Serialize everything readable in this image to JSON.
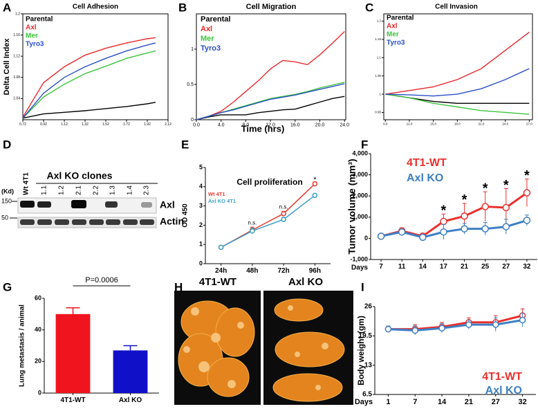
{
  "panel_labels": [
    "A",
    "B",
    "C",
    "D",
    "E",
    "F",
    "G",
    "H",
    "I"
  ],
  "shared_x_label": "Time (hrs)",
  "chart_data": [
    {
      "type": "line",
      "title": "Cell Adhesion",
      "y_label": "Delta Cell Index",
      "x": [
        0.72,
        0.92,
        1.12,
        1.32,
        1.52,
        1.72,
        1.92,
        2.0
      ],
      "xlim": [
        0.72,
        2.12
      ],
      "xticks": [
        0.72,
        0.92,
        1.12,
        1.32,
        1.52,
        1.72,
        1.92,
        2.12
      ],
      "ylim": [
        1.0,
        1.2
      ],
      "yticks": [
        1.04,
        1.08,
        1.12,
        1.16,
        1.2
      ],
      "legend": "top-left",
      "series": [
        {
          "name": "Parental",
          "color": "#000000",
          "values": [
            1.003,
            1.011,
            1.014,
            1.017,
            1.021,
            1.025,
            1.03,
            1.033
          ]
        },
        {
          "name": "Axl",
          "color": "#e8282b",
          "values": [
            1.005,
            1.07,
            1.1,
            1.122,
            1.135,
            1.145,
            1.153,
            1.155
          ]
        },
        {
          "name": "Mer",
          "color": "#3cc43c",
          "values": [
            1.003,
            1.043,
            1.067,
            1.087,
            1.101,
            1.116,
            1.126,
            1.13
          ]
        },
        {
          "name": "Tyro3",
          "color": "#2a4fc7",
          "values": [
            1.003,
            1.05,
            1.08,
            1.1,
            1.116,
            1.13,
            1.141,
            1.145
          ]
        }
      ]
    },
    {
      "type": "line",
      "title": "Cell Migration",
      "x": [
        0,
        2,
        4,
        6,
        8,
        10,
        12,
        14,
        16,
        18,
        20,
        22,
        24
      ],
      "xlim": [
        0,
        24.2
      ],
      "xticks": [
        {
          "value": 0,
          "label": "0.0"
        },
        {
          "value": 4,
          "label": "4.0"
        },
        {
          "value": 8,
          "label": "8.0"
        },
        {
          "value": 12,
          "label": "12.0"
        },
        {
          "value": 16,
          "label": "16.0"
        },
        {
          "value": 20,
          "label": "20.0"
        },
        {
          "value": 24,
          "label": "24.0"
        }
      ],
      "ylim": [
        0,
        1.5
      ],
      "yticks": [
        0,
        0.5,
        1
      ],
      "legend": "top-left",
      "series": [
        {
          "name": "Parental",
          "color": "#000000",
          "values": [
            0,
            0.04,
            0.07,
            0.07,
            0.07,
            0.1,
            0.12,
            0.14,
            0.15,
            0.2,
            0.25,
            0.3,
            0.33
          ]
        },
        {
          "name": "Axl",
          "color": "#e8282b",
          "values": [
            0,
            0.05,
            0.12,
            0.25,
            0.4,
            0.55,
            0.72,
            0.84,
            0.82,
            0.78,
            0.92,
            1.08,
            1.25
          ]
        },
        {
          "name": "Mer",
          "color": "#3cc43c",
          "values": [
            0,
            0.05,
            0.1,
            0.15,
            0.2,
            0.25,
            0.3,
            0.33,
            0.36,
            0.4,
            0.45,
            0.49,
            0.53
          ]
        },
        {
          "name": "Tyro3",
          "color": "#2a4fc7",
          "values": [
            0,
            0.05,
            0.1,
            0.14,
            0.19,
            0.24,
            0.29,
            0.32,
            0.35,
            0.39,
            0.43,
            0.47,
            0.51
          ]
        }
      ]
    },
    {
      "type": "line",
      "title": "Cell Invasion",
      "x": [
        9,
        12,
        15,
        18,
        21,
        24,
        27
      ],
      "xlim": [
        8.8,
        27.4
      ],
      "xticks": [
        {
          "value": 9,
          "label": "9.0"
        },
        {
          "value": 12,
          "label": "12.0"
        },
        {
          "value": 15,
          "label": "15.0"
        },
        {
          "value": 18,
          "label": "18.0"
        },
        {
          "value": 21,
          "label": "21.0"
        },
        {
          "value": 24,
          "label": "24.0"
        },
        {
          "value": 27,
          "label": "27.0"
        }
      ],
      "ylim": [
        0.93,
        1.22
      ],
      "yticks": [
        0.95,
        1,
        1.05,
        1.1,
        1.15,
        1.2
      ],
      "legend": "top-left",
      "series": [
        {
          "name": "Parental",
          "color": "#000000",
          "values": [
            1,
            0.99,
            0.98,
            0.975,
            0.975,
            0.975,
            0.975
          ]
        },
        {
          "name": "Axl",
          "color": "#e8282b",
          "values": [
            1,
            1.01,
            1.02,
            1.04,
            1.07,
            1.12,
            1.17
          ]
        },
        {
          "name": "Mer",
          "color": "#3cc43c",
          "values": [
            1,
            0.99,
            0.975,
            0.965,
            0.955,
            0.95,
            0.945
          ]
        },
        {
          "name": "Tyro3",
          "color": "#2a4fc7",
          "values": [
            1,
            0.998,
            0.995,
            1.0,
            1.015,
            1.04,
            1.07
          ]
        }
      ]
    },
    {
      "type": "line",
      "title": "Cell proliferation",
      "y_label": "OD 450",
      "categories": [
        "24h",
        "48h",
        "72h",
        "96h"
      ],
      "ylim": [
        0,
        5
      ],
      "yticks": [
        0,
        1,
        2,
        3,
        4,
        5
      ],
      "legend": "top-left",
      "markers": true,
      "series": [
        {
          "name": "Wt 4T1",
          "color": "#e33b2e",
          "values": [
            0.85,
            1.75,
            2.6,
            4.15
          ],
          "errors": [
            0.08,
            0.15,
            0.12,
            0.1
          ]
        },
        {
          "name": "Axl KO 4T1",
          "color": "#3a9fc9",
          "values": [
            0.85,
            1.7,
            2.3,
            3.55
          ],
          "errors": [
            0.08,
            0.15,
            0.1,
            0.08
          ]
        }
      ],
      "annotations": [
        {
          "text": "n.s.",
          "category": "48h"
        },
        {
          "text": "n.s.",
          "category": "72h"
        },
        {
          "text": "*",
          "category": "96h"
        }
      ]
    },
    {
      "type": "line",
      "y_label": "Tumor volume (mm³)",
      "x_label": "Days",
      "categories": [
        "7",
        "11",
        "14",
        "17",
        "21",
        "25",
        "27",
        "32"
      ],
      "ylim": [
        -1000,
        4000
      ],
      "yticks": [
        {
          "value": -1000,
          "label": "-1,000"
        },
        0,
        {
          "value": 1000,
          "label": "1,000"
        },
        {
          "value": 2000,
          "label": "2,000"
        },
        {
          "value": 3000,
          "label": "3,000"
        },
        {
          "value": 4000,
          "label": "4,000"
        }
      ],
      "legend": "top-left",
      "markers": true,
      "series": [
        {
          "name": "4T1-WT",
          "color": "#e8302d",
          "values": [
            100,
            350,
            100,
            800,
            1050,
            1500,
            1450,
            2150
          ],
          "errors": [
            100,
            150,
            150,
            350,
            600,
            700,
            900,
            650
          ]
        },
        {
          "name": "Axl KO",
          "color": "#3d7fc4",
          "values": [
            100,
            300,
            50,
            300,
            450,
            450,
            550,
            850
          ],
          "errors": [
            100,
            100,
            100,
            350,
            250,
            300,
            350,
            250
          ]
        }
      ],
      "annotations": [
        {
          "text": "*",
          "category": "17"
        },
        {
          "text": "*",
          "category": "21"
        },
        {
          "text": "*",
          "category": "25"
        },
        {
          "text": "*",
          "category": "27"
        },
        {
          "text": "*",
          "category": "32"
        }
      ]
    },
    {
      "type": "bar",
      "y_label": "Lung metastasis / animal",
      "categories": [
        "4T1-WT",
        "Axl KO"
      ],
      "values": [
        50,
        27
      ],
      "errors": [
        4,
        3
      ],
      "colors": [
        "#f0141e",
        "#1010c8"
      ],
      "ylim": [
        0,
        60
      ],
      "yticks": [
        0,
        20,
        40,
        60
      ],
      "annotations": [
        {
          "text": "P=0.0006"
        }
      ]
    },
    {
      "type": "line",
      "y_label": "Body weight (gm)",
      "x_label": "Days",
      "categories": [
        "1",
        "7",
        "14",
        "21",
        "27",
        "32"
      ],
      "ylim": [
        6.5,
        26
      ],
      "yticks": [
        6.5,
        13,
        19.5,
        26
      ],
      "legend": "bottom-right",
      "markers": true,
      "series": [
        {
          "name": "4T1-WT",
          "color": "#e8302d",
          "values": [
            21,
            21,
            21.5,
            22.5,
            22.5,
            24
          ],
          "errors": [
            0.7,
            1,
            1,
            1,
            1.5,
            1.5
          ]
        },
        {
          "name": "Axl KO",
          "color": "#3d7fc4",
          "values": [
            21,
            20.7,
            21.2,
            22,
            22,
            23
          ],
          "errors": [
            0.7,
            1,
            1,
            1,
            1.5,
            1.5
          ]
        }
      ]
    }
  ],
  "blot": {
    "title": "Axl KO clones",
    "lanes": [
      "Wt 4T1",
      "1.1",
      "1.2",
      "2.1",
      "2.2",
      "1.3",
      "1.4",
      "2.3"
    ],
    "marker_unit": "(Kd)",
    "markers": [
      "150",
      "50"
    ],
    "rows": [
      "Axl",
      "Actin"
    ]
  },
  "photos": {
    "labels": [
      "4T1-WT",
      "Axl KO"
    ]
  }
}
